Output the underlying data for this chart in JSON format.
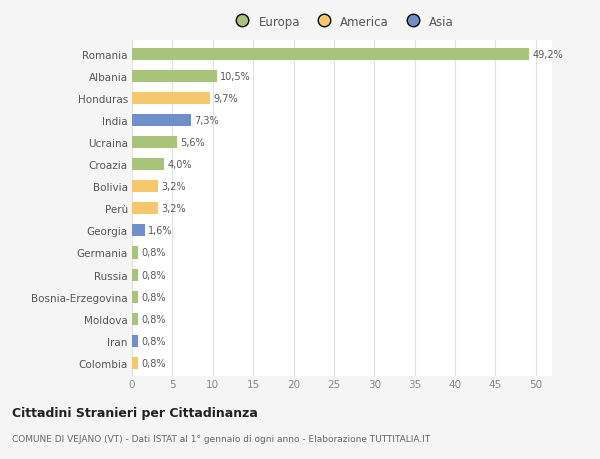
{
  "countries": [
    "Romania",
    "Albania",
    "Honduras",
    "India",
    "Ucraina",
    "Croazia",
    "Bolivia",
    "Perù",
    "Georgia",
    "Germania",
    "Russia",
    "Bosnia-Erzegovina",
    "Moldova",
    "Iran",
    "Colombia"
  ],
  "values": [
    49.2,
    10.5,
    9.7,
    7.3,
    5.6,
    4.0,
    3.2,
    3.2,
    1.6,
    0.8,
    0.8,
    0.8,
    0.8,
    0.8,
    0.8
  ],
  "labels": [
    "49,2%",
    "10,5%",
    "9,7%",
    "7,3%",
    "5,6%",
    "4,0%",
    "3,2%",
    "3,2%",
    "1,6%",
    "0,8%",
    "0,8%",
    "0,8%",
    "0,8%",
    "0,8%",
    "0,8%"
  ],
  "colors": [
    "#a8c47a",
    "#a8c47a",
    "#f5c86e",
    "#6e8fc7",
    "#a8c47a",
    "#a8c47a",
    "#f5c86e",
    "#f5c86e",
    "#6e8fc7",
    "#a8c47a",
    "#a8c47a",
    "#a8c47a",
    "#a8c47a",
    "#6e8fc7",
    "#f5c86e"
  ],
  "legend_labels": [
    "Europa",
    "America",
    "Asia"
  ],
  "legend_colors": [
    "#a8c47a",
    "#f5c86e",
    "#6e8fc7"
  ],
  "title": "Cittadini Stranieri per Cittadinanza",
  "subtitle": "COMUNE DI VEJANO (VT) - Dati ISTAT al 1° gennaio di ogni anno - Elaborazione TUTTITALIA.IT",
  "xlim": [
    0,
    52
  ],
  "xticks": [
    0,
    5,
    10,
    15,
    20,
    25,
    30,
    35,
    40,
    45,
    50
  ],
  "bg_color": "#f5f5f5",
  "plot_bg_color": "#ffffff",
  "grid_color": "#e0e0e0"
}
